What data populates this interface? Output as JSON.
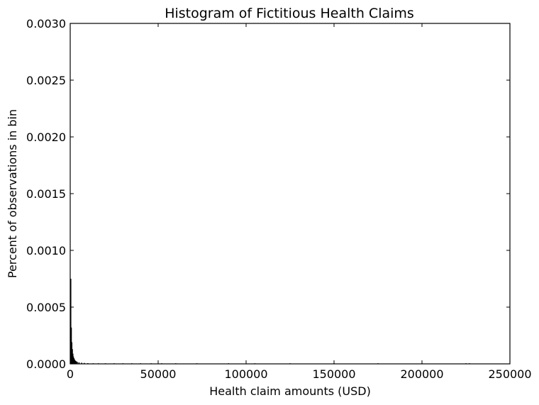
{
  "chart_data": {
    "type": "bar",
    "title": "Histogram of Fictitious Health Claims",
    "xlabel": "Health claim amounts (USD)",
    "ylabel": "Percent of observations in bin",
    "xlim": [
      0,
      250000
    ],
    "ylim": [
      0,
      0.003
    ],
    "x_ticks": [
      "0",
      "50000",
      "100000",
      "150000",
      "200000",
      "250000"
    ],
    "y_ticks": [
      "0.0000",
      "0.0005",
      "0.0010",
      "0.0015",
      "0.0020",
      "0.0025",
      "0.0030"
    ],
    "grid": false,
    "bar_color": "#000000",
    "bins": [
      {
        "x": 300,
        "value": 0.00075
      },
      {
        "x": 600,
        "value": 0.00032
      },
      {
        "x": 900,
        "value": 0.00019
      },
      {
        "x": 1200,
        "value": 0.00013
      },
      {
        "x": 1500,
        "value": 9e-05
      },
      {
        "x": 1800,
        "value": 6.5e-05
      },
      {
        "x": 2100,
        "value": 5e-05
      },
      {
        "x": 2400,
        "value": 4e-05
      },
      {
        "x": 2800,
        "value": 3e-05
      },
      {
        "x": 3300,
        "value": 2.4e-05
      },
      {
        "x": 4000,
        "value": 1.8e-05
      },
      {
        "x": 5000,
        "value": 1.3e-05
      },
      {
        "x": 6500,
        "value": 1e-05
      },
      {
        "x": 8000,
        "value": 8e-06
      },
      {
        "x": 10000,
        "value": 6e-06
      },
      {
        "x": 13000,
        "value": 5e-06
      },
      {
        "x": 16000,
        "value": 4e-06
      },
      {
        "x": 20000,
        "value": 4e-06
      },
      {
        "x": 25000,
        "value": 3e-06
      },
      {
        "x": 30000,
        "value": 3e-06
      },
      {
        "x": 35000,
        "value": 2e-06
      },
      {
        "x": 40000,
        "value": 2e-06
      },
      {
        "x": 46000,
        "value": 2e-06
      },
      {
        "x": 52000,
        "value": 2e-06
      },
      {
        "x": 60000,
        "value": 1e-06
      },
      {
        "x": 72000,
        "value": 2e-06
      },
      {
        "x": 90000,
        "value": 1e-06
      },
      {
        "x": 105000,
        "value": 1e-06
      },
      {
        "x": 125000,
        "value": 1e-06
      },
      {
        "x": 150000,
        "value": 1e-06
      },
      {
        "x": 175000,
        "value": 1e-06
      },
      {
        "x": 200000,
        "value": 1e-06
      },
      {
        "x": 225000,
        "value": 2e-06
      },
      {
        "x": 227000,
        "value": 1e-06
      }
    ]
  }
}
